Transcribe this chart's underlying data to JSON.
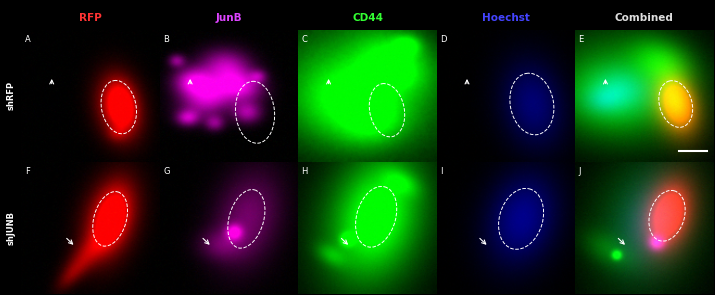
{
  "col_labels": [
    "RFP",
    "JunB",
    "CD44",
    "Hoechst",
    "Combined"
  ],
  "col_label_colors": [
    "#ff3333",
    "#dd44ff",
    "#33ff33",
    "#4444ff",
    "#dddddd"
  ],
  "row_labels": [
    "shRFP",
    "shJUNB"
  ],
  "panel_letters_row1": [
    "A",
    "B",
    "C",
    "D",
    "E"
  ],
  "panel_letters_row2": [
    "F",
    "G",
    "H",
    "I",
    "J"
  ],
  "n_cols": 5,
  "n_rows": 2,
  "figure_width": 7.15,
  "figure_height": 2.95
}
